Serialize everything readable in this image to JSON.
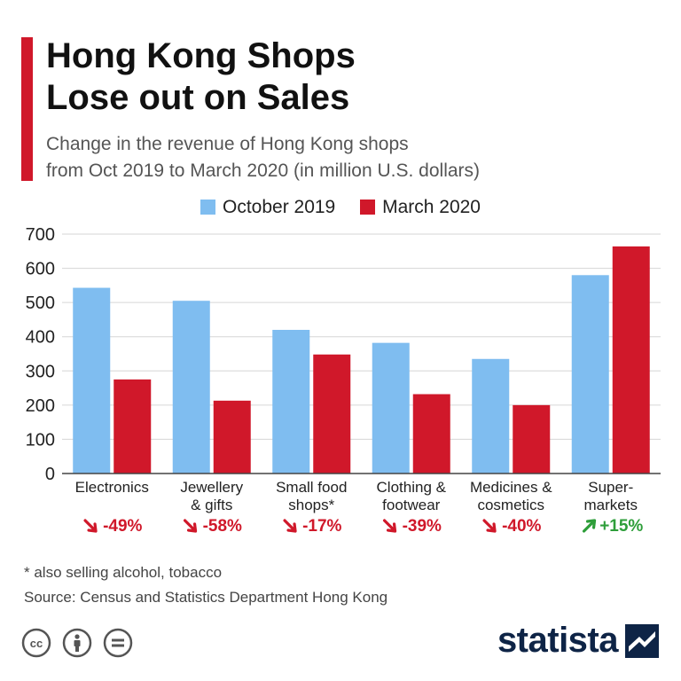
{
  "title_line1": "Hong Kong Shops",
  "title_line2": "Lose out on Sales",
  "subtitle_line1": "Change in the revenue of Hong Kong shops",
  "subtitle_line2": "from Oct 2019 to March 2020 (in million U.S. dollars)",
  "colors": {
    "accent": "#d0182a",
    "october": "#7fbdf0",
    "march": "#d0182a",
    "down": "#d0182a",
    "up": "#2e9e3a",
    "brand": "#0e2446"
  },
  "chart_data": {
    "type": "bar",
    "categories": [
      "Electronics",
      "Jewellery & gifts",
      "Small food shops*",
      "Clothing & footwear",
      "Medicines & cosmetics",
      "Super-markets"
    ],
    "category_lines": [
      [
        "Electronics"
      ],
      [
        "Jewellery",
        "& gifts"
      ],
      [
        "Small food",
        "shops*"
      ],
      [
        "Clothing &",
        "footwear"
      ],
      [
        "Medicines &",
        "cosmetics"
      ],
      [
        "Super-",
        "markets"
      ]
    ],
    "series": [
      {
        "name": "October 2019",
        "values": [
          543,
          505,
          420,
          382,
          335,
          580
        ]
      },
      {
        "name": "March 2020",
        "values": [
          275,
          213,
          348,
          232,
          200,
          664
        ]
      }
    ],
    "changes": [
      "-49%",
      "-58%",
      "-17%",
      "-39%",
      "-40%",
      "+15%"
    ],
    "ylim": [
      0,
      700
    ],
    "yticks": [
      0,
      100,
      200,
      300,
      400,
      500,
      600,
      700
    ],
    "legend": "top-center",
    "grid": true
  },
  "footnote": "* also selling alcohol, tobacco",
  "source": "Source: Census and Statistics Department Hong Kong",
  "brand": "statista"
}
